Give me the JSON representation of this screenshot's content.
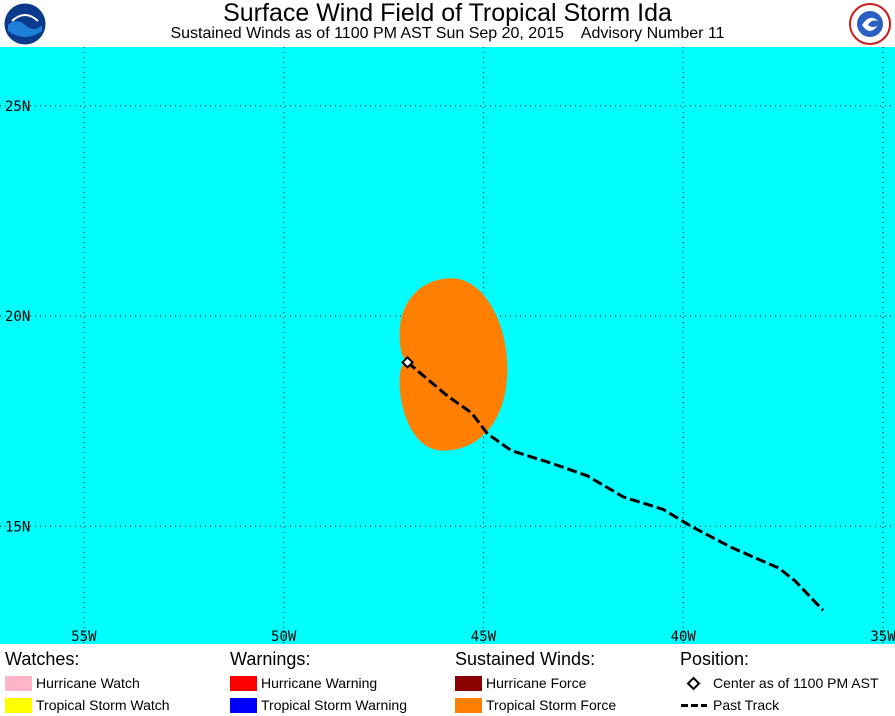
{
  "header": {
    "title": "Surface Wind Field of Tropical Storm Ida",
    "subtitle": "Sustained Winds as of 1100 PM AST Sun Sep 20, 2015    Advisory Number 11",
    "left_logo": "noaa-logo",
    "right_logo": "nws-logo"
  },
  "map": {
    "background_color": "#00ffff",
    "lat_labels": [
      "25N",
      "20N",
      "15N"
    ],
    "lon_labels": [
      "55W",
      "50W",
      "45W",
      "40W",
      "35W"
    ],
    "grid": "dotted",
    "lat_range": [
      12.2,
      26.4
    ],
    "lon_range": [
      57.1,
      34.7
    ],
    "gridline_lats": [
      25,
      20,
      15
    ],
    "gridline_lons": [
      55,
      50,
      45,
      40,
      35
    ],
    "storm_center": {
      "lat": 18.9,
      "lon": 46.9
    },
    "tropical_storm_wind_field": {
      "north_lat": 20.9,
      "south_lat": 16.8,
      "west_lon": 47.1,
      "east_lon": 44.4,
      "color": "#ff8000"
    },
    "past_track": [
      {
        "lat": 18.9,
        "lon": 46.9
      },
      {
        "lat": 18.1,
        "lon": 45.9
      },
      {
        "lat": 17.7,
        "lon": 45.3
      },
      {
        "lat": 17.2,
        "lon": 44.9
      },
      {
        "lat": 16.8,
        "lon": 44.3
      },
      {
        "lat": 16.5,
        "lon": 43.3
      },
      {
        "lat": 16.2,
        "lon": 42.4
      },
      {
        "lat": 15.7,
        "lon": 41.5
      },
      {
        "lat": 15.4,
        "lon": 40.5
      },
      {
        "lat": 15.0,
        "lon": 39.8
      },
      {
        "lat": 14.5,
        "lon": 38.8
      },
      {
        "lat": 14.0,
        "lon": 37.6
      },
      {
        "lat": 13.7,
        "lon": 37.2
      },
      {
        "lat": 13.0,
        "lon": 36.5
      }
    ]
  },
  "legend": {
    "watches": {
      "heading": "Watches:",
      "items": [
        {
          "label": "Hurricane Watch",
          "color": "#ffb4c8"
        },
        {
          "label": "Tropical Storm Watch",
          "color": "#ffff00"
        }
      ]
    },
    "warnings": {
      "heading": "Warnings:",
      "items": [
        {
          "label": "Hurricane Warning",
          "color": "#ff0000"
        },
        {
          "label": "Tropical Storm Warning",
          "color": "#0000ff"
        }
      ]
    },
    "winds": {
      "heading": "Sustained Winds:",
      "items": [
        {
          "label": "Hurricane Force",
          "color": "#8b0000"
        },
        {
          "label": "Tropical Storm Force",
          "color": "#ff8000"
        }
      ]
    },
    "position": {
      "heading": "Position:",
      "items": [
        {
          "label": "Center as of 1100 PM AST",
          "icon": "diamond-icon"
        },
        {
          "label": "Past Track",
          "icon": "dashed-line-icon"
        }
      ]
    }
  }
}
